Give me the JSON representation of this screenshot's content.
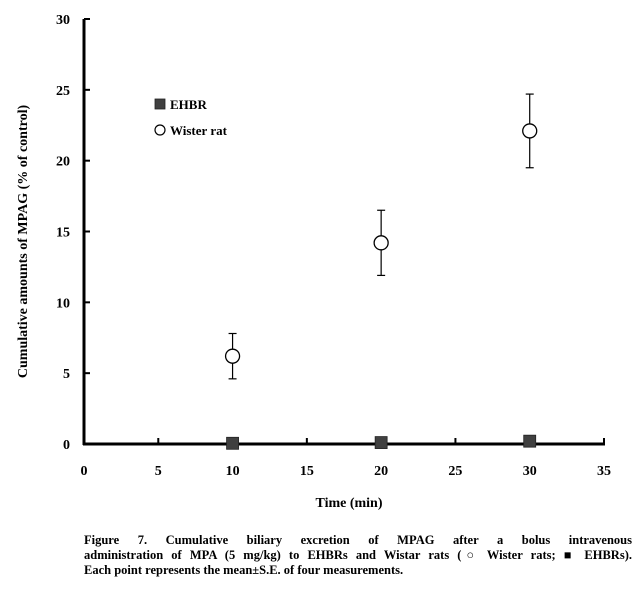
{
  "chart_data": {
    "type": "scatter",
    "xlabel": "Time  (min)",
    "ylabel": "Cumulative amounts of MPAG (% of control)",
    "xlim": [
      0,
      35
    ],
    "ylim": [
      0,
      30
    ],
    "x_ticks": [
      "0",
      "5",
      "10",
      "15",
      "20",
      "25",
      "30",
      "35"
    ],
    "y_ticks": [
      "0",
      "5",
      "10",
      "15",
      "20",
      "25",
      "30"
    ],
    "grid": false,
    "legend_position": "top-left",
    "series": [
      {
        "name": "EHBR",
        "marker": "filled-square",
        "color": "#404040",
        "points": [
          {
            "x": 10,
            "y": 0.05
          },
          {
            "x": 20,
            "y": 0.1
          },
          {
            "x": 30,
            "y": 0.2
          }
        ]
      },
      {
        "name": "Wister rat",
        "marker": "open-circle",
        "color": "#000000",
        "points": [
          {
            "x": 10,
            "y": 6.2,
            "err": 1.6
          },
          {
            "x": 20,
            "y": 14.2,
            "err": 2.3
          },
          {
            "x": 30,
            "y": 22.1,
            "err": 2.6
          }
        ]
      }
    ]
  },
  "caption": {
    "line1": "Figure 7. Cumulative biliary excretion of MPAG after a bolus intravenous",
    "line2": "administration of MPA (5 mg/kg) to EHBRs and Wistar rats (○ Wister rats; ■ EHBRs).",
    "line3": "Each point represents the mean±S.E. of four measurements."
  }
}
